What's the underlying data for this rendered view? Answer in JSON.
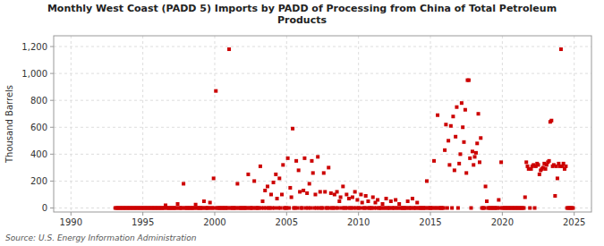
{
  "chart_data": {
    "type": "scatter",
    "title": "Monthly West Coast (PADD 5) Imports by PADD of Processing from China of Total Petroleum\nProducts",
    "ylabel": "Thousand Barrels",
    "annotations": [
      "Source: U.S. Energy Information Administration"
    ],
    "color": "#cc0000",
    "marker": "square",
    "grid": true,
    "xlim": [
      1988.8,
      2026.2
    ],
    "ylim": [
      -30,
      1280
    ],
    "xticks": [
      1990,
      1995,
      2000,
      2005,
      2010,
      2015,
      2020,
      2025
    ],
    "yticks": [
      0,
      200,
      400,
      600,
      800,
      {
        "value": 1000,
        "label": "1,000"
      },
      {
        "value": 1200,
        "label": "1,200"
      }
    ],
    "x": [
      1993.08,
      1993.17,
      1993.25,
      1993.33,
      1993.42,
      1993.5,
      1993.58,
      1993.67,
      1993.75,
      1993.83,
      1993.92,
      1994.0,
      1994.08,
      1994.17,
      1994.25,
      1994.33,
      1994.42,
      1994.5,
      1994.58,
      1994.67,
      1994.75,
      1994.83,
      1994.92,
      1995.0,
      1995.08,
      1995.17,
      1995.25,
      1995.33,
      1995.42,
      1995.5,
      1995.58,
      1995.67,
      1995.75,
      1995.83,
      1995.92,
      1996.0,
      1996.08,
      1996.17,
      1996.25,
      1996.33,
      1996.42,
      1996.5,
      1996.58,
      1996.67,
      1996.75,
      1996.83,
      1996.92,
      1997.0,
      1997.08,
      1997.17,
      1997.25,
      1997.33,
      1997.42,
      1997.5,
      1997.58,
      1997.67,
      1997.75,
      1997.83,
      1997.92,
      1998.0,
      1998.08,
      1998.17,
      1998.25,
      1998.33,
      1998.42,
      1998.5,
      1998.58,
      1998.67,
      1998.75,
      1998.83,
      1998.92,
      1999.0,
      1999.08,
      1999.17,
      1999.25,
      1999.33,
      1999.42,
      1999.5,
      1999.58,
      1999.67,
      1999.75,
      1999.83,
      1999.92,
      2000.0,
      2000.08,
      2000.17,
      2000.25,
      2000.33,
      2000.42,
      2000.5,
      2000.58,
      2000.67,
      2000.75,
      2000.83,
      2000.92,
      2001.0,
      2001.08,
      2001.17,
      2001.25,
      2001.33,
      2001.42,
      2001.5,
      2001.58,
      2001.67,
      2001.75,
      2001.83,
      2001.92,
      2002.0,
      2002.08,
      2002.17,
      2002.25,
      2002.33,
      2002.42,
      2002.5,
      2002.58,
      2002.67,
      2002.75,
      2002.83,
      2002.92,
      2003.0,
      2003.08,
      2003.17,
      2003.25,
      2003.33,
      2003.42,
      2003.5,
      2003.58,
      2003.67,
      2003.75,
      2003.83,
      2003.92,
      2004.0,
      2004.08,
      2004.17,
      2004.25,
      2004.33,
      2004.42,
      2004.5,
      2004.58,
      2004.67,
      2004.75,
      2004.83,
      2004.92,
      2005.0,
      2005.08,
      2005.17,
      2005.25,
      2005.33,
      2005.42,
      2005.5,
      2005.58,
      2005.67,
      2005.75,
      2005.83,
      2005.92,
      2006.0,
      2006.08,
      2006.17,
      2006.25,
      2006.33,
      2006.42,
      2006.5,
      2006.58,
      2006.67,
      2006.75,
      2006.83,
      2006.92,
      2007.0,
      2007.08,
      2007.17,
      2007.25,
      2007.33,
      2007.42,
      2007.5,
      2007.58,
      2007.67,
      2007.75,
      2007.83,
      2007.92,
      2008.0,
      2008.08,
      2008.17,
      2008.25,
      2008.33,
      2008.42,
      2008.5,
      2008.58,
      2008.67,
      2008.75,
      2008.83,
      2008.92,
      2009.0,
      2009.08,
      2009.17,
      2009.25,
      2009.33,
      2009.42,
      2009.5,
      2009.58,
      2009.67,
      2009.75,
      2009.83,
      2009.92,
      2010.0,
      2010.08,
      2010.17,
      2010.25,
      2010.33,
      2010.42,
      2010.5,
      2010.58,
      2010.67,
      2010.75,
      2010.83,
      2010.92,
      2011.0,
      2011.08,
      2011.17,
      2011.25,
      2011.33,
      2011.42,
      2011.5,
      2011.58,
      2011.67,
      2011.75,
      2011.83,
      2011.92,
      2012.0,
      2012.08,
      2012.17,
      2012.25,
      2012.33,
      2012.42,
      2012.5,
      2012.58,
      2012.67,
      2012.75,
      2012.83,
      2012.92,
      2013.0,
      2013.08,
      2013.17,
      2013.25,
      2013.33,
      2013.42,
      2013.5,
      2013.58,
      2013.67,
      2013.75,
      2013.83,
      2013.92,
      2014.0,
      2014.08,
      2014.17,
      2014.25,
      2014.33,
      2014.42,
      2014.5,
      2014.58,
      2014.67,
      2014.75,
      2014.83,
      2014.92,
      2015.0,
      2015.08,
      2015.17,
      2015.25,
      2015.33,
      2015.42,
      2015.5,
      2015.58,
      2015.67,
      2015.75,
      2015.83,
      2015.92,
      2016.0,
      2016.08,
      2016.17,
      2016.25,
      2016.33,
      2016.42,
      2016.5,
      2016.58,
      2016.67,
      2016.75,
      2016.83,
      2016.92,
      2017.0,
      2017.08,
      2017.17,
      2017.25,
      2017.33,
      2017.42,
      2017.5,
      2017.58,
      2017.67,
      2017.75,
      2017.83,
      2017.92,
      2018.0,
      2018.08,
      2018.17,
      2018.25,
      2018.33,
      2018.42,
      2018.5,
      2018.58,
      2018.67,
      2018.75,
      2018.83,
      2018.92,
      2019.0,
      2019.08,
      2019.17,
      2019.25,
      2019.33,
      2019.42,
      2019.5,
      2019.58,
      2019.67,
      2019.75,
      2019.83,
      2019.92,
      2020.0,
      2020.08,
      2020.17,
      2020.25,
      2020.33,
      2020.42,
      2020.5,
      2020.58,
      2020.67,
      2020.75,
      2020.83,
      2020.92,
      2021.0,
      2021.08,
      2021.17,
      2021.25,
      2021.33,
      2021.42,
      2021.5,
      2021.58,
      2021.67,
      2021.75,
      2021.83,
      2021.92,
      2022.0,
      2022.08,
      2022.17,
      2022.25,
      2022.33,
      2022.42,
      2022.5,
      2022.58,
      2022.67,
      2022.75,
      2022.83,
      2022.92,
      2023.0,
      2023.08,
      2023.17,
      2023.25,
      2023.33,
      2023.42,
      2023.5,
      2023.58,
      2023.67,
      2023.75,
      2023.83,
      2023.92,
      2024.0,
      2024.08,
      2024.17,
      2024.25,
      2024.33,
      2024.42,
      2024.5,
      2024.58,
      2024.67,
      2024.75,
      2024.83,
      2024.92
    ],
    "values": [
      0,
      0,
      0,
      0,
      0,
      0,
      0,
      0,
      0,
      0,
      0,
      0,
      0,
      0,
      0,
      0,
      0,
      0,
      0,
      0,
      0,
      0,
      0,
      0,
      0,
      0,
      0,
      0,
      0,
      0,
      0,
      0,
      0,
      0,
      0,
      0,
      0,
      0,
      0,
      0,
      0,
      0,
      20,
      0,
      0,
      0,
      0,
      0,
      0,
      0,
      0,
      0,
      30,
      0,
      0,
      0,
      0,
      180,
      0,
      0,
      0,
      0,
      0,
      0,
      0,
      0,
      0,
      25,
      0,
      0,
      0,
      0,
      0,
      0,
      50,
      0,
      0,
      0,
      0,
      40,
      0,
      0,
      220,
      0,
      870,
      0,
      0,
      0,
      0,
      0,
      0,
      0,
      0,
      0,
      0,
      1180,
      0,
      0,
      0,
      0,
      0,
      0,
      180,
      0,
      0,
      0,
      0,
      0,
      0,
      0,
      0,
      250,
      0,
      0,
      0,
      0,
      200,
      0,
      0,
      0,
      0,
      310,
      0,
      50,
      0,
      130,
      0,
      160,
      0,
      0,
      100,
      0,
      190,
      0,
      250,
      70,
      0,
      220,
      0,
      100,
      320,
      0,
      0,
      0,
      370,
      0,
      150,
      80,
      590,
      0,
      0,
      350,
      0,
      280,
      120,
      0,
      0,
      130,
      370,
      0,
      110,
      0,
      180,
      0,
      350,
      260,
      0,
      100,
      0,
      380,
      0,
      120,
      0,
      0,
      260,
      120,
      0,
      0,
      300,
      0,
      110,
      0,
      0,
      100,
      0,
      120,
      0,
      50,
      80,
      0,
      160,
      0,
      0,
      100,
      0,
      70,
      0,
      0,
      80,
      0,
      120,
      0,
      60,
      0,
      0,
      100,
      40,
      0,
      0,
      90,
      0,
      50,
      0,
      0,
      0,
      80,
      0,
      40,
      0,
      60,
      0,
      0,
      0,
      30,
      0,
      0,
      70,
      0,
      0,
      0,
      50,
      0,
      0,
      0,
      60,
      0,
      0,
      30,
      0,
      0,
      0,
      0,
      0,
      0,
      50,
      0,
      0,
      0,
      70,
      0,
      0,
      0,
      40,
      0,
      0,
      0,
      0,
      0,
      0,
      0,
      200,
      0,
      0,
      0,
      0,
      0,
      350,
      0,
      0,
      690,
      0,
      0,
      0,
      0,
      0,
      430,
      620,
      0,
      500,
      320,
      610,
      0,
      680,
      280,
      530,
      750,
      0,
      330,
      400,
      780,
      600,
      490,
      730,
      260,
      950,
      950,
      370,
      0,
      420,
      320,
      380,
      410,
      480,
      700,
      340,
      520,
      0,
      0,
      0,
      160,
      50,
      0,
      0,
      0,
      0,
      0,
      0,
      0,
      0,
      0,
      60,
      0,
      340,
      0,
      0,
      0,
      0,
      0,
      0,
      0,
      0,
      0,
      0,
      0,
      0,
      0,
      0,
      0,
      0,
      0,
      0,
      0,
      80,
      340,
      310,
      290,
      0,
      290,
      310,
      320,
      0,
      310,
      330,
      320,
      250,
      280,
      290,
      300,
      330,
      290,
      320,
      340,
      350,
      640,
      650,
      310,
      320,
      90,
      310,
      220,
      330,
      310,
      1180,
      310,
      330,
      290,
      310,
      0,
      0,
      0,
      0,
      0,
      0
    ]
  }
}
